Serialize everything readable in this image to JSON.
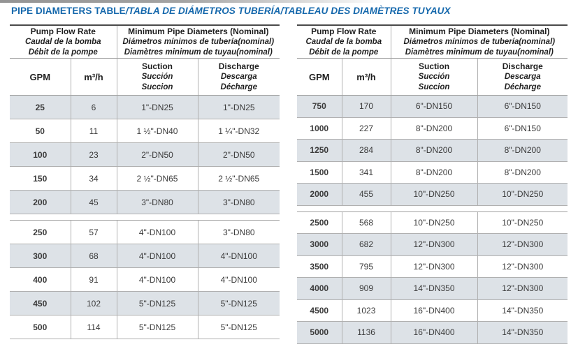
{
  "title": {
    "main": "PIPE DIAMETERS TABLE",
    "rest": "/TABLA DE DIÁMETROS TUBERÍA/TABLEAU DES DIAMÈTRES TUYAUX"
  },
  "colors": {
    "title_blue": "#1568ac",
    "row_shade": "#dde2e7"
  },
  "header": {
    "flow_group": [
      "Pump Flow Rate",
      "Caudal de la bomba",
      "Débit de la pompe"
    ],
    "diam_group": [
      "Minimum Pipe Diameters (Nominal)",
      "Diámetros mínimos de tubería(nominal)",
      "Diamètres minimum de tuyau(nominal)"
    ],
    "gpm": "GPM",
    "m3h": "m³/h",
    "suction": [
      "Suction",
      "Succión",
      "Succion"
    ],
    "discharge": [
      "Discharge",
      "Descarga",
      "Décharge"
    ]
  },
  "tables": {
    "left": {
      "section1": [
        {
          "gpm": "25",
          "m3h": "6",
          "suction": "1\"-DN25",
          "discharge": "1\"-DN25"
        },
        {
          "gpm": "50",
          "m3h": "11",
          "suction": "1 ½\"-DN40",
          "discharge": "1 ¼\"-DN32"
        },
        {
          "gpm": "100",
          "m3h": "23",
          "suction": "2\"-DN50",
          "discharge": "2\"-DN50"
        },
        {
          "gpm": "150",
          "m3h": "34",
          "suction": "2 ½\"-DN65",
          "discharge": "2 ½\"-DN65"
        },
        {
          "gpm": "200",
          "m3h": "45",
          "suction": "3\"-DN80",
          "discharge": "3\"-DN80"
        }
      ],
      "section2": [
        {
          "gpm": "250",
          "m3h": "57",
          "suction": "4\"-DN100",
          "discharge": "3\"-DN80"
        },
        {
          "gpm": "300",
          "m3h": "68",
          "suction": "4\"-DN100",
          "discharge": "4\"-DN100"
        },
        {
          "gpm": "400",
          "m3h": "91",
          "suction": "4\"-DN100",
          "discharge": "4\"-DN100"
        },
        {
          "gpm": "450",
          "m3h": "102",
          "suction": "5\"-DN125",
          "discharge": "5\"-DN125"
        },
        {
          "gpm": "500",
          "m3h": "114",
          "suction": "5\"-DN125",
          "discharge": "5\"-DN125"
        }
      ]
    },
    "right": {
      "section1": [
        {
          "gpm": "750",
          "m3h": "170",
          "suction": "6\"-DN150",
          "discharge": "6\"-DN150"
        },
        {
          "gpm": "1000",
          "m3h": "227",
          "suction": "8\"-DN200",
          "discharge": "6\"-DN150"
        },
        {
          "gpm": "1250",
          "m3h": "284",
          "suction": "8\"-DN200",
          "discharge": "8\"-DN200"
        },
        {
          "gpm": "1500",
          "m3h": "341",
          "suction": "8\"-DN200",
          "discharge": "8\"-DN200"
        },
        {
          "gpm": "2000",
          "m3h": "455",
          "suction": "10\"-DN250",
          "discharge": "10\"-DN250"
        }
      ],
      "section2": [
        {
          "gpm": "2500",
          "m3h": "568",
          "suction": "10\"-DN250",
          "discharge": "10\"-DN250"
        },
        {
          "gpm": "3000",
          "m3h": "682",
          "suction": "12\"-DN300",
          "discharge": "12\"-DN300"
        },
        {
          "gpm": "3500",
          "m3h": "795",
          "suction": "12\"-DN300",
          "discharge": "12\"-DN300"
        },
        {
          "gpm": "4000",
          "m3h": "909",
          "suction": "14\"-DN350",
          "discharge": "12\"-DN300"
        },
        {
          "gpm": "4500",
          "m3h": "1023",
          "suction": "16\"-DN400",
          "discharge": "14\"-DN350"
        },
        {
          "gpm": "5000",
          "m3h": "1136",
          "suction": "16\"-DN400",
          "discharge": "14\"-DN350"
        }
      ]
    }
  }
}
